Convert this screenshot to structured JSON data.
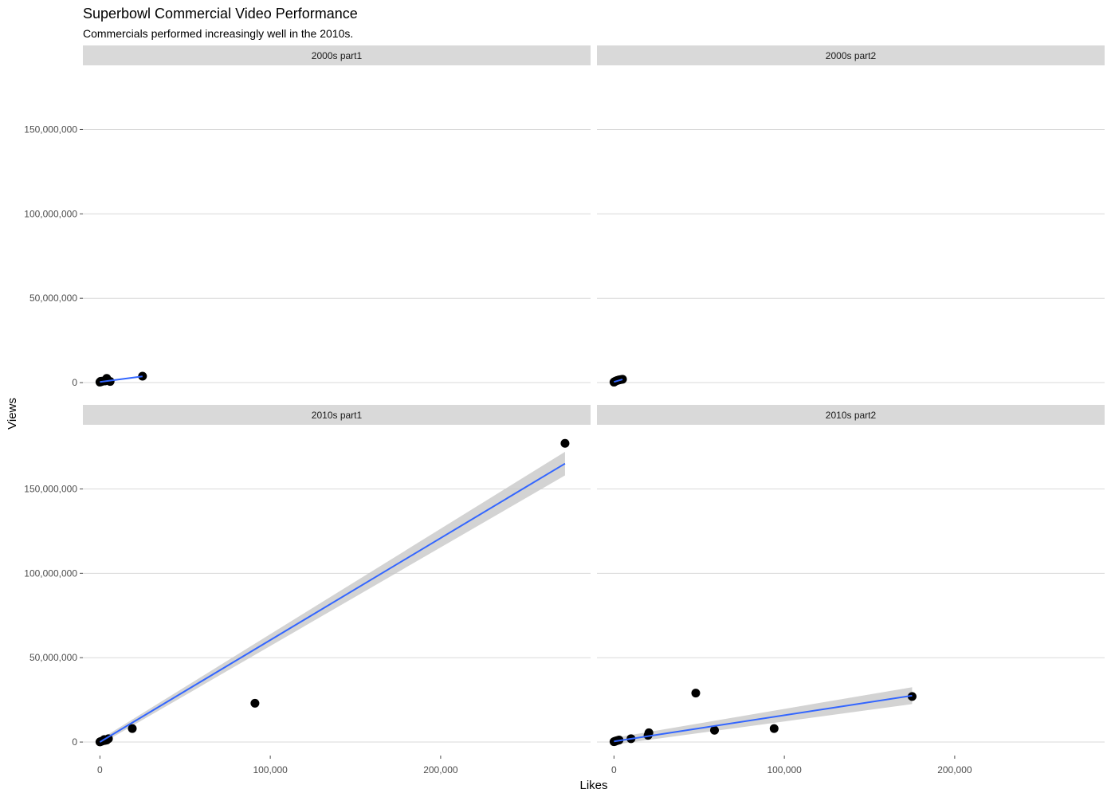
{
  "chart_data": {
    "type": "scatter",
    "title": "Superbowl Commercial Video Performance",
    "subtitle": "Commercials performed increasingly well in the 2010s.",
    "xlabel": "Likes",
    "ylabel": "Views",
    "xlim": [
      -10000,
      288000
    ],
    "ylim": [
      -8000000,
      188000000
    ],
    "x_ticks": [
      0,
      100000,
      200000
    ],
    "x_tick_labels": [
      "0",
      "100,000",
      "200,000"
    ],
    "y_ticks": [
      0,
      50000000,
      100000000,
      150000000
    ],
    "y_tick_labels": [
      "0",
      "50,000,000",
      "100,000,000",
      "150,000,000"
    ],
    "grid": "horizontal major lines only",
    "colors": {
      "points": "#000000",
      "fit_line": "#3366ff",
      "confidence_band": "#c4c4c4",
      "strip_background": "#d9d9d9",
      "gridline": "#d9d9d9"
    },
    "panels": [
      {
        "name": "2000s part1",
        "points": [
          [
            0,
            300000
          ],
          [
            200,
            500000
          ],
          [
            500,
            800000
          ],
          [
            1000,
            600000
          ],
          [
            1500,
            900000
          ],
          [
            3000,
            1000000
          ],
          [
            4000,
            2500000
          ],
          [
            6000,
            700000
          ],
          [
            25000,
            3800000
          ]
        ],
        "fit": {
          "x_start": 0,
          "x_end": 25000,
          "y_start": 400000,
          "y_end": 3700000
        },
        "band": {
          "lower_start": 400000,
          "upper_start": 400000,
          "lower_end": 3700000,
          "upper_end": 3700000
        }
      },
      {
        "name": "2000s part2",
        "points": [
          [
            0,
            300000
          ],
          [
            500,
            600000
          ],
          [
            1000,
            900000
          ],
          [
            2000,
            1300000
          ],
          [
            3000,
            1600000
          ],
          [
            4000,
            1800000
          ],
          [
            5000,
            2000000
          ]
        ],
        "fit": {
          "x_start": 0,
          "x_end": 5000,
          "y_start": 400000,
          "y_end": 1900000
        },
        "band": {
          "lower_start": 400000,
          "upper_start": 400000,
          "lower_end": 1900000,
          "upper_end": 1900000
        }
      },
      {
        "name": "2010s part1",
        "points": [
          [
            0,
            100000
          ],
          [
            500,
            300000
          ],
          [
            1000,
            500000
          ],
          [
            2000,
            800000
          ],
          [
            2500,
            1500000
          ],
          [
            3000,
            1000000
          ],
          [
            4000,
            1200000
          ],
          [
            5000,
            2000000
          ],
          [
            19000,
            8000000
          ],
          [
            91000,
            23000000
          ],
          [
            273000,
            177000000
          ]
        ],
        "fit": {
          "x_start": 0,
          "x_end": 273000,
          "y_start": 0,
          "y_end": 165000000
        },
        "band": {
          "lower_start": -1500000,
          "upper_start": 1500000,
          "lower_end": 158000000,
          "upper_end": 172000000
        }
      },
      {
        "name": "2010s part2",
        "points": [
          [
            0,
            200000
          ],
          [
            500,
            400000
          ],
          [
            1000,
            600000
          ],
          [
            2000,
            900000
          ],
          [
            3000,
            1200000
          ],
          [
            10000,
            2000000
          ],
          [
            20000,
            4000000
          ],
          [
            20500,
            5500000
          ],
          [
            48000,
            29000000
          ],
          [
            59000,
            7000000
          ],
          [
            94000,
            8000000
          ],
          [
            175000,
            27000000
          ]
        ],
        "fit": {
          "x_start": 0,
          "x_end": 175000,
          "y_start": 400000,
          "y_end": 27500000
        },
        "band": {
          "lower_start": -1500000,
          "upper_start": 2500000,
          "lower_end": 22500000,
          "upper_end": 32500000
        }
      }
    ]
  }
}
